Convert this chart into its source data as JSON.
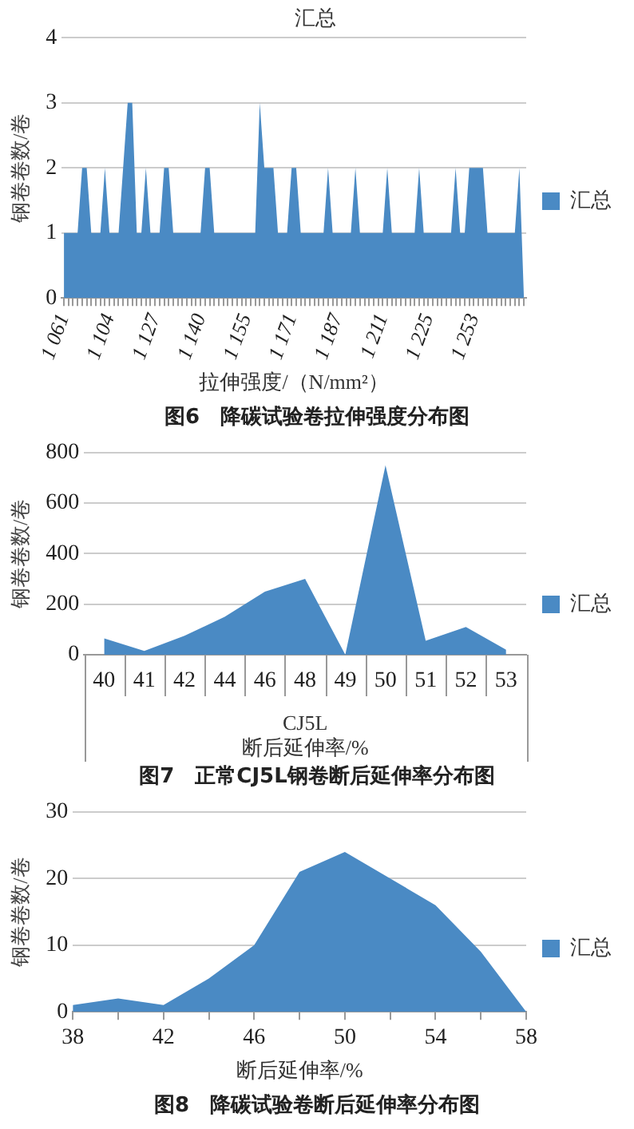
{
  "chart_data": [
    {
      "type": "area",
      "title": "汇总",
      "xlabel": "拉伸强度/（N/mm²）",
      "ylabel": "钢卷卷数/卷",
      "annotations": [
        "图6　降碳试验卷拉伸强度分布图"
      ],
      "categories": [
        "1 061",
        null,
        null,
        null,
        null,
        null,
        null,
        null,
        null,
        null,
        "1 104",
        null,
        null,
        null,
        null,
        null,
        null,
        null,
        null,
        null,
        "1 127",
        null,
        null,
        null,
        null,
        null,
        null,
        null,
        null,
        null,
        "1 140",
        null,
        null,
        null,
        null,
        null,
        null,
        null,
        null,
        null,
        "1 155",
        null,
        null,
        null,
        null,
        null,
        null,
        null,
        null,
        null,
        "1 171",
        null,
        null,
        null,
        null,
        null,
        null,
        null,
        null,
        null,
        "1 187",
        null,
        null,
        null,
        null,
        null,
        null,
        null,
        null,
        null,
        "1 211",
        null,
        null,
        null,
        null,
        null,
        null,
        null,
        null,
        null,
        "1 225",
        null,
        null,
        null,
        null,
        null,
        null,
        null,
        null,
        null,
        "1 253",
        null,
        null,
        null,
        null,
        null,
        null,
        null,
        null,
        null,
        null,
        null
      ],
      "series": [
        {
          "name": "汇总",
          "color": "#4a8ac4",
          "values": [
            1,
            1,
            1,
            1,
            2,
            2,
            1,
            1,
            1,
            2,
            1,
            1,
            1,
            2,
            3,
            3,
            1,
            1,
            2,
            1,
            1,
            1,
            2,
            2,
            1,
            1,
            1,
            1,
            1,
            1,
            1,
            2,
            2,
            1,
            1,
            1,
            1,
            1,
            1,
            1,
            1,
            1,
            1,
            3,
            2,
            2,
            2,
            1,
            1,
            1,
            2,
            2,
            1,
            1,
            1,
            1,
            1,
            1,
            2,
            1,
            1,
            1,
            1,
            1,
            2,
            1,
            1,
            1,
            1,
            1,
            1,
            2,
            1,
            1,
            1,
            1,
            1,
            1,
            2,
            1,
            1,
            1,
            1,
            1,
            1,
            1,
            2,
            1,
            1,
            2,
            2,
            2,
            2,
            1,
            1,
            1,
            1,
            1,
            1,
            1,
            2,
            0
          ]
        }
      ],
      "ylim": [
        0,
        4
      ],
      "yticks": [
        0,
        1,
        2,
        3,
        4
      ],
      "grid": "y",
      "legend": "right"
    },
    {
      "type": "area",
      "xlabel": "断后延伸率/%",
      "ylabel": "钢卷卷数/卷",
      "annotations": [
        "CJ5L",
        "图7　正常CJ5L钢卷断后延伸率分布图"
      ],
      "categories": [
        "40",
        "41",
        "42",
        "44",
        "46",
        "48",
        "49",
        "50",
        "51",
        "52",
        "53"
      ],
      "series": [
        {
          "name": "汇总",
          "color": "#4a8ac4",
          "values": [
            65,
            15,
            75,
            150,
            250,
            300,
            0,
            750,
            55,
            110,
            20
          ]
        }
      ],
      "ylim": [
        0,
        800
      ],
      "yticks": [
        0,
        200,
        400,
        600,
        800
      ],
      "grid": "y",
      "legend": "right"
    },
    {
      "type": "area",
      "xlabel": "断后延伸率/%",
      "ylabel": "钢卷卷数/卷",
      "annotations": [
        "图8　降碳试验卷断后延伸率分布图"
      ],
      "x": [
        38,
        40,
        42,
        44,
        46,
        48,
        50,
        52,
        54,
        56,
        58
      ],
      "series": [
        {
          "name": "汇总",
          "color": "#4a8ac4",
          "values": [
            1,
            2,
            1,
            5,
            10,
            21,
            24,
            20,
            16,
            9,
            0
          ]
        }
      ],
      "xlim": [
        38,
        58
      ],
      "xticks": [
        38,
        {
          "value": 40,
          "label": null
        },
        42,
        {
          "value": 44,
          "label": null
        },
        46,
        {
          "value": 48,
          "label": null
        },
        50,
        {
          "value": 52,
          "label": null
        },
        54,
        {
          "value": 56,
          "label": null
        },
        58
      ],
      "ylim": [
        0,
        30
      ],
      "yticks": [
        0,
        10,
        20,
        30
      ],
      "grid": "y",
      "legend": "right"
    }
  ]
}
